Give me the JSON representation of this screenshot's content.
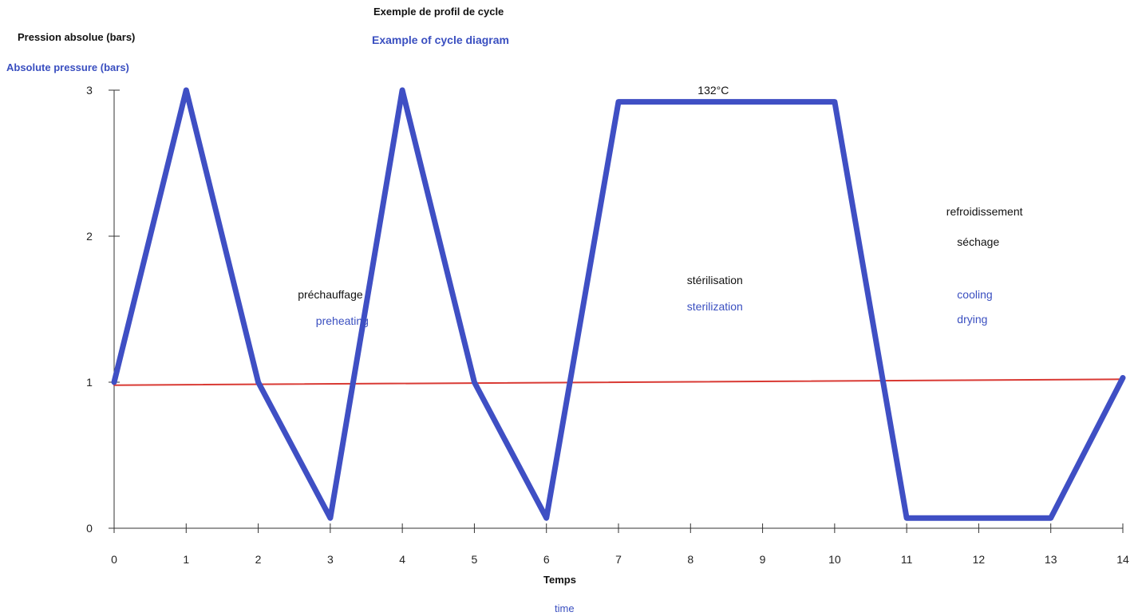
{
  "chart_data": {
    "type": "line",
    "title": "Exemple de profil de cycle",
    "subtitle": "Example of cycle diagram",
    "ylabel": "Pression absolue (bars)",
    "ylabel_en": "Absolute pressure (bars)",
    "xlabel": "Temps",
    "xlabel_en": "time",
    "xlim": [
      0,
      14
    ],
    "ylim": [
      0,
      3
    ],
    "x_ticks": [
      0,
      1,
      2,
      3,
      4,
      5,
      6,
      7,
      8,
      9,
      10,
      11,
      12,
      13,
      14
    ],
    "y_ticks": [
      0,
      1,
      2,
      3
    ],
    "grid": false,
    "series": [
      {
        "color": "#3f4fc4",
        "points": [
          [
            0,
            1
          ],
          [
            1,
            3
          ],
          [
            2,
            1
          ],
          [
            3,
            0.07
          ],
          [
            4,
            3
          ],
          [
            5,
            1
          ],
          [
            6,
            0.07
          ],
          [
            7,
            2.92
          ],
          [
            10,
            2.92
          ],
          [
            11,
            0.07
          ],
          [
            13,
            0.07
          ],
          [
            14,
            1.03
          ]
        ]
      },
      {
        "color": "#d93a34",
        "points": [
          [
            0,
            0.98
          ],
          [
            14,
            1.02
          ]
        ]
      }
    ],
    "annotations": [
      {
        "text": "132°C",
        "x": 8.1,
        "y": 3.0,
        "color": "#111111"
      },
      {
        "text": "préchauffage",
        "x": 2.55,
        "y": 1.6,
        "color": "#111111"
      },
      {
        "text": "preheating",
        "x": 2.8,
        "y": 1.42,
        "color": "#3a4fc0"
      },
      {
        "text": "stérilisation",
        "x": 7.95,
        "y": 1.7,
        "color": "#111111"
      },
      {
        "text": "sterilization",
        "x": 7.95,
        "y": 1.52,
        "color": "#3a4fc0"
      },
      {
        "text": "refroidissement",
        "x": 11.55,
        "y": 2.17,
        "color": "#111111"
      },
      {
        "text": "séchage",
        "x": 11.7,
        "y": 1.96,
        "color": "#111111"
      },
      {
        "text": "cooling",
        "x": 11.7,
        "y": 1.6,
        "color": "#3a4fc0"
      },
      {
        "text": "drying",
        "x": 11.7,
        "y": 1.43,
        "color": "#3a4fc0"
      }
    ]
  }
}
